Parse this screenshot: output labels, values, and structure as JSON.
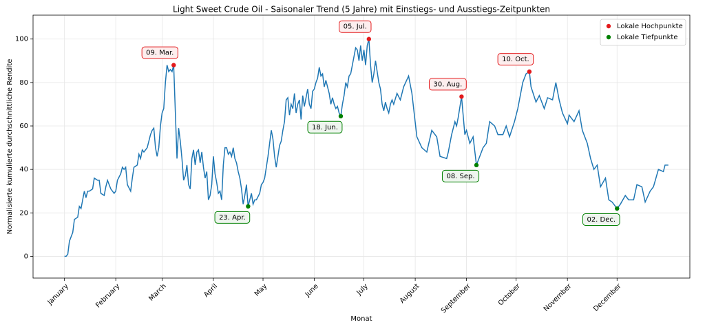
{
  "chart_data": {
    "type": "line",
    "title": "Light Sweet Crude Oil - Saisonaler Trend (5 Jahre) mit Einstiegs- und Ausstiegs-Zeitpunkten",
    "xlabel": "Monat",
    "ylabel": "Normalisierte kumulierte durchschnittliche Rendite",
    "color": "#1f77b4",
    "x": [
      0,
      1,
      2,
      3,
      5,
      6,
      8,
      9,
      10,
      11,
      12,
      13,
      14,
      15,
      17,
      18,
      20,
      21,
      22,
      24,
      25,
      26,
      28,
      30,
      31,
      32,
      34,
      35,
      36,
      37,
      38,
      40,
      41,
      42,
      44,
      45,
      46,
      47,
      48,
      50,
      52,
      53,
      54,
      55,
      56,
      57,
      58,
      59,
      60,
      61,
      62,
      63,
      64,
      65,
      66,
      68,
      69,
      70,
      71,
      72,
      73,
      74,
      75,
      76,
      77,
      78,
      79,
      80,
      81,
      82,
      83,
      84,
      85,
      86,
      87,
      88,
      89,
      90,
      91,
      92,
      93,
      94,
      95,
      96,
      97,
      98,
      99,
      100,
      101,
      102,
      103,
      104,
      105,
      106,
      107,
      108,
      109,
      110,
      111,
      112,
      113,
      114,
      115,
      116,
      118,
      119,
      120,
      121,
      122,
      123,
      124,
      125,
      126,
      127,
      128,
      129,
      130,
      131,
      132,
      133,
      134,
      135,
      136,
      137,
      138,
      139,
      140,
      141,
      142,
      143,
      144,
      145,
      146,
      147,
      148,
      149,
      150,
      151,
      152,
      153,
      154,
      155,
      156,
      157,
      158,
      159,
      160,
      161,
      162,
      163,
      164,
      165,
      166,
      167,
      168,
      169,
      170,
      171,
      172,
      173,
      174,
      175,
      176,
      177,
      178,
      179,
      180,
      181,
      182,
      183,
      184,
      185,
      186,
      187,
      188,
      189,
      190,
      191,
      192,
      193,
      194,
      195,
      196,
      197,
      198,
      199,
      201,
      203,
      205,
      208,
      210,
      213,
      216,
      219,
      222,
      225,
      227,
      231,
      232,
      234,
      236,
      237,
      238,
      240,
      242,
      243,
      245,
      247,
      249,
      251,
      253,
      255,
      257,
      260,
      262,
      265,
      267,
      269,
      272,
      274,
      277,
      279,
      281,
      282,
      285,
      287,
      290,
      292,
      295,
      297,
      299,
      301,
      304,
      305,
      308,
      311,
      313,
      316,
      318,
      320,
      322,
      324,
      327,
      329,
      331,
      334,
      336,
      339,
      341,
      344,
      346,
      349,
      351,
      354,
      356,
      359,
      362,
      363,
      365
    ],
    "values": [
      0,
      0,
      1,
      7,
      11,
      17,
      18,
      23,
      22,
      26,
      30,
      27,
      30,
      30,
      31,
      36,
      35,
      35,
      29,
      28,
      32,
      35,
      31,
      29,
      30,
      35,
      38,
      41,
      40,
      41,
      33,
      30,
      36,
      41,
      42,
      47,
      45,
      49,
      48,
      50,
      56,
      58,
      59,
      50,
      46,
      50,
      60,
      66,
      68,
      80,
      88,
      85,
      86,
      85,
      88,
      45,
      59,
      53,
      45,
      35,
      37,
      42,
      33,
      31,
      45,
      49,
      42,
      48,
      49,
      43,
      48,
      41,
      36,
      39,
      26,
      28,
      33,
      46,
      38,
      34,
      29,
      30,
      26,
      42,
      50,
      50,
      47,
      48,
      46,
      50,
      45,
      43,
      39,
      36,
      31,
      24,
      28,
      33,
      23,
      26,
      29,
      24,
      26,
      26,
      29,
      33,
      34,
      36,
      41,
      46,
      52,
      58,
      54,
      46,
      41,
      46,
      51,
      53,
      58,
      62,
      72,
      73,
      65,
      70,
      68,
      75,
      66,
      70,
      72,
      63,
      74,
      69,
      73,
      77,
      70,
      68,
      76,
      77,
      80,
      82,
      87,
      83,
      84,
      78,
      81,
      78,
      75,
      70,
      73,
      70,
      68,
      69,
      66,
      64.5,
      70,
      74,
      80,
      78,
      83,
      84,
      88,
      92,
      96,
      95,
      90,
      97,
      90,
      95,
      88,
      97,
      100,
      88,
      80,
      84,
      90,
      85,
      80,
      77,
      70,
      67,
      71,
      68,
      66,
      70,
      72,
      70,
      75,
      72,
      78,
      83,
      75,
      55,
      50,
      48,
      58,
      55,
      46,
      45,
      48,
      56,
      62,
      60,
      64,
      73.5,
      56,
      58,
      52,
      55,
      42,
      46,
      50,
      52,
      62,
      60,
      56,
      56,
      60,
      55,
      62,
      68,
      80,
      84,
      85,
      78,
      71,
      74,
      68,
      73,
      72,
      80,
      72,
      66,
      61,
      65,
      62,
      67,
      58,
      52,
      45,
      40,
      42,
      32,
      36,
      26,
      25,
      22,
      24,
      28,
      26,
      26,
      33,
      32,
      25,
      30,
      32,
      40,
      39,
      42,
      42
    ],
    "xlim": [
      -19,
      378
    ],
    "xticks": [
      {
        "value": 0,
        "label": "January"
      },
      {
        "value": 31,
        "label": "February"
      },
      {
        "value": 59,
        "label": "March"
      },
      {
        "value": 90,
        "label": "April"
      },
      {
        "value": 120,
        "label": "May"
      },
      {
        "value": 151,
        "label": "June"
      },
      {
        "value": 181,
        "label": "July"
      },
      {
        "value": 212,
        "label": "August"
      },
      {
        "value": 243,
        "label": "September"
      },
      {
        "value": 273,
        "label": "October"
      },
      {
        "value": 304,
        "label": "November"
      },
      {
        "value": 334,
        "label": "December"
      }
    ],
    "ylim": [
      -10,
      111
    ],
    "yticks": [
      0,
      20,
      40,
      60,
      80,
      100
    ],
    "grid": true,
    "legend": "upper right",
    "markers": [
      {
        "name": "Lokale Hochpunkte",
        "color": "#e31a1c",
        "x": [
          66,
          184,
          240,
          281
        ],
        "values": [
          88,
          100,
          73.5,
          85
        ],
        "labels": [
          "09. Mar.",
          "05. Jul.",
          "30. Aug.",
          "10. Oct."
        ]
      },
      {
        "name": "Lokale Tiefpunkte",
        "color": "#008000",
        "x": [
          111,
          167,
          249,
          334
        ],
        "values": [
          23,
          64.5,
          42,
          22
        ],
        "labels": [
          "23. Apr.",
          "18. Jun.",
          "08. Sep.",
          "02. Dec."
        ]
      }
    ]
  }
}
